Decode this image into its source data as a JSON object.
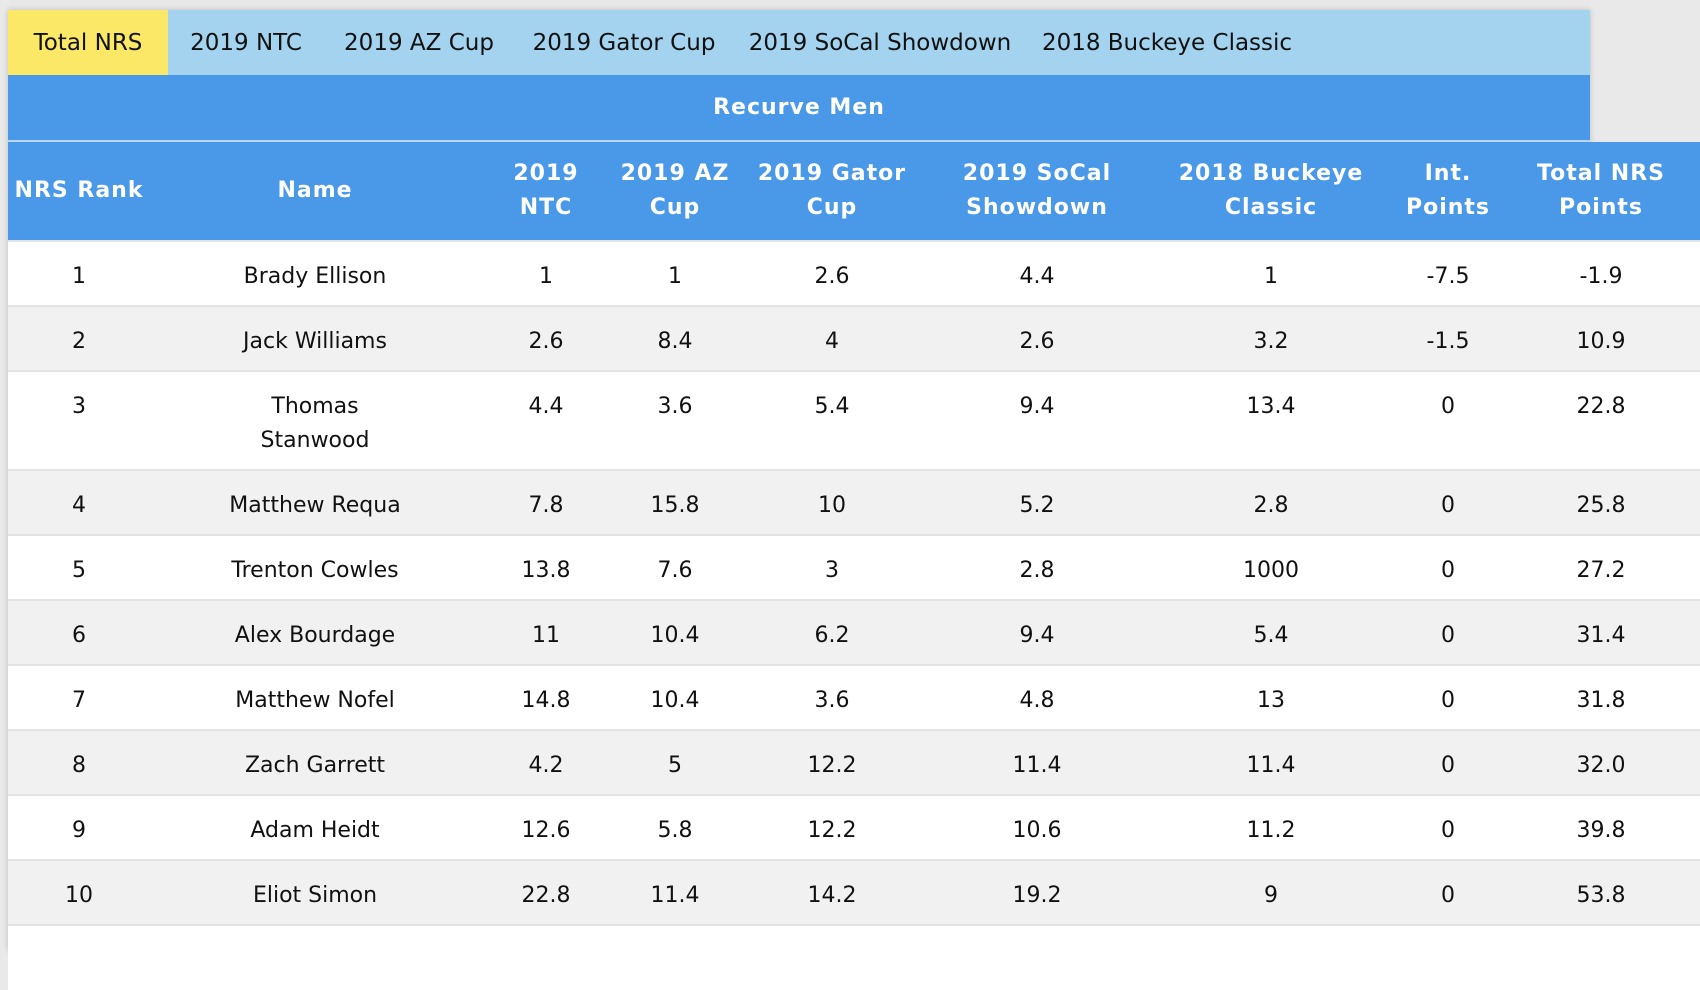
{
  "tabs": [
    {
      "label": "Total NRS",
      "active": true
    },
    {
      "label": "2019 NTC",
      "active": false
    },
    {
      "label": "2019 AZ Cup",
      "active": false
    },
    {
      "label": "2019 Gator Cup",
      "active": false
    },
    {
      "label": "2019 SoCal Showdown",
      "active": false
    },
    {
      "label": "2018 Buckeye Classic",
      "active": false
    }
  ],
  "table_title": "Recurve Men",
  "columns": [
    "NRS Rank",
    "Name",
    "2019 NTC",
    "2019 AZ Cup",
    "2019 Gator Cup",
    "2019 SoCal Showdown",
    "2018 Buckeye Classic",
    "Int. Points",
    "Total NRS Points"
  ],
  "rows": [
    [
      "1",
      "Brady Ellison",
      "1",
      "1",
      "2.6",
      "4.4",
      "1",
      "-7.5",
      "-1.9"
    ],
    [
      "2",
      "Jack Williams",
      "2.6",
      "8.4",
      "4",
      "2.6",
      "3.2",
      "-1.5",
      "10.9"
    ],
    [
      "3",
      "Thomas Stanwood",
      "4.4",
      "3.6",
      "5.4",
      "9.4",
      "13.4",
      "0",
      "22.8"
    ],
    [
      "4",
      "Matthew Requa",
      "7.8",
      "15.8",
      "10",
      "5.2",
      "2.8",
      "0",
      "25.8"
    ],
    [
      "5",
      "Trenton Cowles",
      "13.8",
      "7.6",
      "3",
      "2.8",
      "1000",
      "0",
      "27.2"
    ],
    [
      "6",
      "Alex Bourdage",
      "11",
      "10.4",
      "6.2",
      "9.4",
      "5.4",
      "0",
      "31.4"
    ],
    [
      "7",
      "Matthew Nofel",
      "14.8",
      "10.4",
      "3.6",
      "4.8",
      "13",
      "0",
      "31.8"
    ],
    [
      "8",
      "Zach Garrett",
      "4.2",
      "5",
      "12.2",
      "11.4",
      "11.4",
      "0",
      "32.0"
    ],
    [
      "9",
      "Adam Heidt",
      "12.6",
      "5.8",
      "12.2",
      "10.6",
      "11.2",
      "0",
      "39.8"
    ],
    [
      "10",
      "Eliot Simon",
      "22.8",
      "11.4",
      "14.2",
      "19.2",
      "9",
      "0",
      "53.8"
    ]
  ],
  "colors": {
    "tab_bar": "#a3d3ee",
    "active_tab": "#fbe867",
    "header": "#4a98e8",
    "row_alt": "#f1f1f1"
  }
}
